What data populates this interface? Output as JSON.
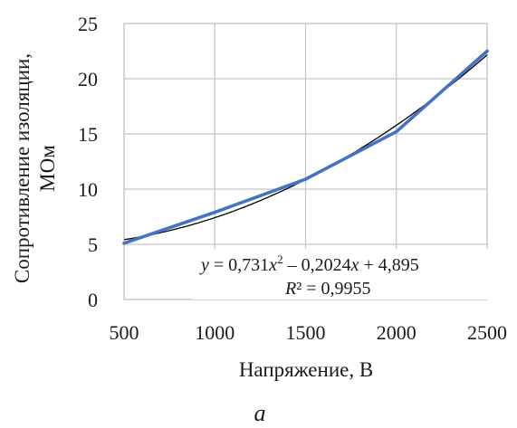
{
  "chart_data": {
    "type": "line",
    "title": "",
    "xlabel": "Напряжение, В",
    "ylabel_lines": [
      "Сопротивление изоляции,",
      "МОм"
    ],
    "xlim": [
      500,
      2500
    ],
    "ylim": [
      0,
      25
    ],
    "x_ticks": [
      "500",
      "1000",
      "1500",
      "2000",
      "2500"
    ],
    "y_ticks": [
      "0",
      "5",
      "10",
      "15",
      "20",
      "25"
    ],
    "grid": true,
    "series": [
      {
        "x": [
          500,
          1000,
          1500,
          2000,
          2500
        ],
        "y": [
          5.1,
          7.9,
          10.9,
          15.2,
          22.5
        ],
        "color": "#4472c4"
      }
    ],
    "trendline": {
      "type": "polynomial",
      "coefficients": [
        0.731,
        -0.2024,
        4.895
      ],
      "x_step_base": 500,
      "color": "#000000"
    },
    "annotation": {
      "equation": {
        "y": "y",
        "eq": " = 0,731",
        "x1": "x",
        "sq": "2",
        "mid": " – 0,2024",
        "x2": "x",
        "tail": " + 4,895"
      },
      "r2": {
        "r": "R",
        "rest": "² = 0,9955"
      }
    },
    "caption": "а"
  }
}
